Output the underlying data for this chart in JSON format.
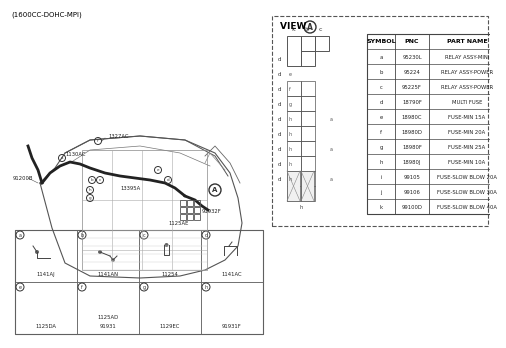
{
  "title": "(1600CC-DOHC-MPI)",
  "bg_color": "#ffffff",
  "table_headers": [
    "SYMBOL",
    "PNC",
    "PART NAME"
  ],
  "table_rows": [
    [
      "a",
      "95230L",
      "RELAY ASSY-MINI"
    ],
    [
      "b",
      "95224",
      "RELAY ASSY-POWER"
    ],
    [
      "c",
      "95225F",
      "RELAY ASSY-POWER"
    ],
    [
      "d",
      "18790F",
      "MULTI FUSE"
    ],
    [
      "e",
      "18980C",
      "FUSE-MIN 15A"
    ],
    [
      "f",
      "18980D",
      "FUSE-MIN 20A"
    ],
    [
      "g",
      "18980F",
      "FUSE-MIN 25A"
    ],
    [
      "h",
      "18980J",
      "FUSE-MIN 10A"
    ],
    [
      "i",
      "99105",
      "FUSE-SLOW BLOW 20A"
    ],
    [
      "j",
      "99106",
      "FUSE-SLOW BLOW 30A"
    ],
    [
      "k",
      "99100D",
      "FUSE-SLOW BLOW 40A"
    ]
  ]
}
